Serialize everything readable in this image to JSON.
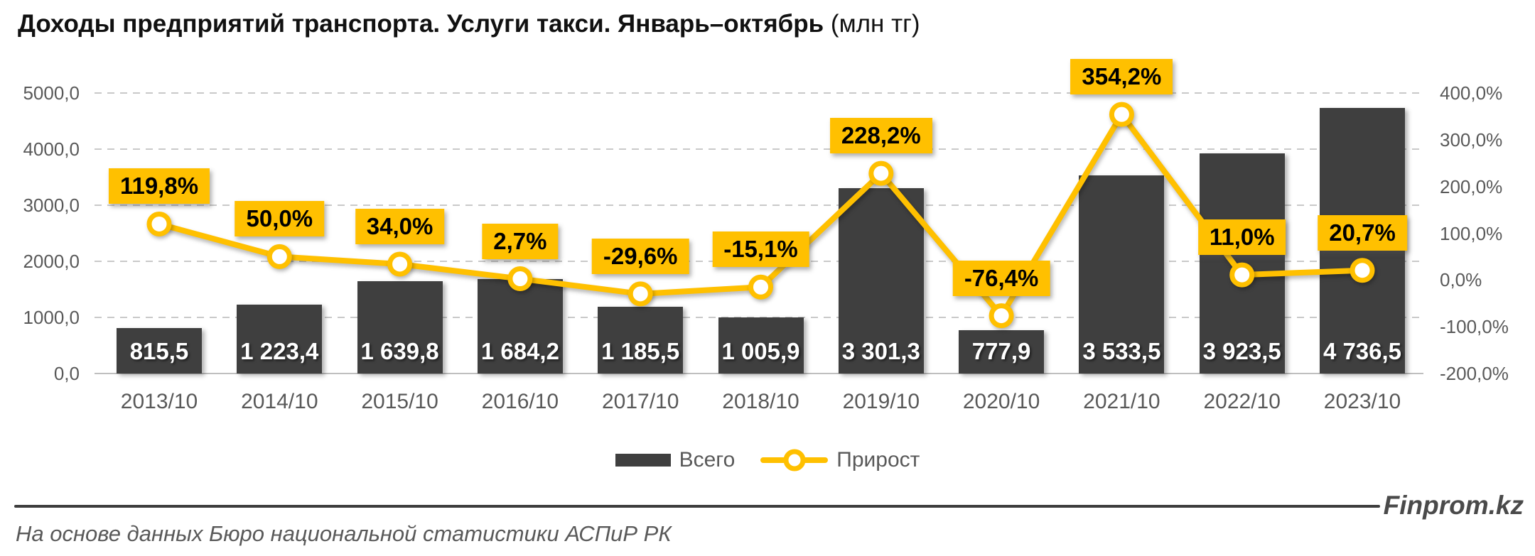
{
  "title": {
    "main": "Доходы предприятий транспорта. Услуги такси. Январь–октябрь",
    "unit": " (млн тг)"
  },
  "legend": {
    "bar_label": "Всего",
    "line_label": "Прирост"
  },
  "footer": {
    "source": "На основе данных Бюро национальной статистики АСПиР РК",
    "brand": "Finprom.kz"
  },
  "colors": {
    "accent": "#FFC000",
    "bar": "#3f3f3f",
    "axis_text": "#595959",
    "grid": "#c9c9c9",
    "bar_label_text": "#ffffff",
    "callout_text": "#000000"
  },
  "chart_data": {
    "type": "bar+line",
    "title": "Доходы предприятий транспорта. Услуги такси. Январь–октябрь (млн тг)",
    "categories": [
      "2013/10",
      "2014/10",
      "2015/10",
      "2016/10",
      "2017/10",
      "2018/10",
      "2019/10",
      "2020/10",
      "2021/10",
      "2022/10",
      "2023/10"
    ],
    "series": [
      {
        "name": "Всего",
        "type": "bar",
        "axis": "left",
        "values": [
          815.5,
          1223.4,
          1639.8,
          1684.2,
          1185.5,
          1005.9,
          3301.3,
          777.9,
          3533.5,
          3923.5,
          4736.5
        ],
        "data_labels": [
          "815,5",
          "1 223,4",
          "1 639,8",
          "1 684,2",
          "1 185,5",
          "1 005,9",
          "3 301,3",
          "777,9",
          "3 533,5",
          "3 923,5",
          "4 736,5"
        ]
      },
      {
        "name": "Прирост",
        "type": "line",
        "axis": "right",
        "values": [
          119.8,
          50.0,
          34.0,
          2.7,
          -29.6,
          -15.1,
          228.2,
          -76.4,
          354.2,
          11.0,
          20.7
        ],
        "data_labels": [
          "119,8%",
          "50,0%",
          "34,0%",
          "2,7%",
          "-29,6%",
          "-15,1%",
          "228,2%",
          "-76,4%",
          "354,2%",
          "11,0%",
          "20,7%"
        ]
      }
    ],
    "left_axis": {
      "min": 0,
      "max": 5000,
      "tick_labels": [
        "5000,0",
        "4000,0",
        "3000,0",
        "2000,0",
        "1000,0",
        "0,0"
      ]
    },
    "right_axis": {
      "min": -200,
      "max": 400,
      "tick_labels": [
        "400,0%",
        "300,0%",
        "200,0%",
        "100,0%",
        "0,0%",
        "-100,0%",
        "-200,0%"
      ]
    },
    "grid": "horizontal dashed at left-axis ticks",
    "legend_position": "bottom-center"
  }
}
